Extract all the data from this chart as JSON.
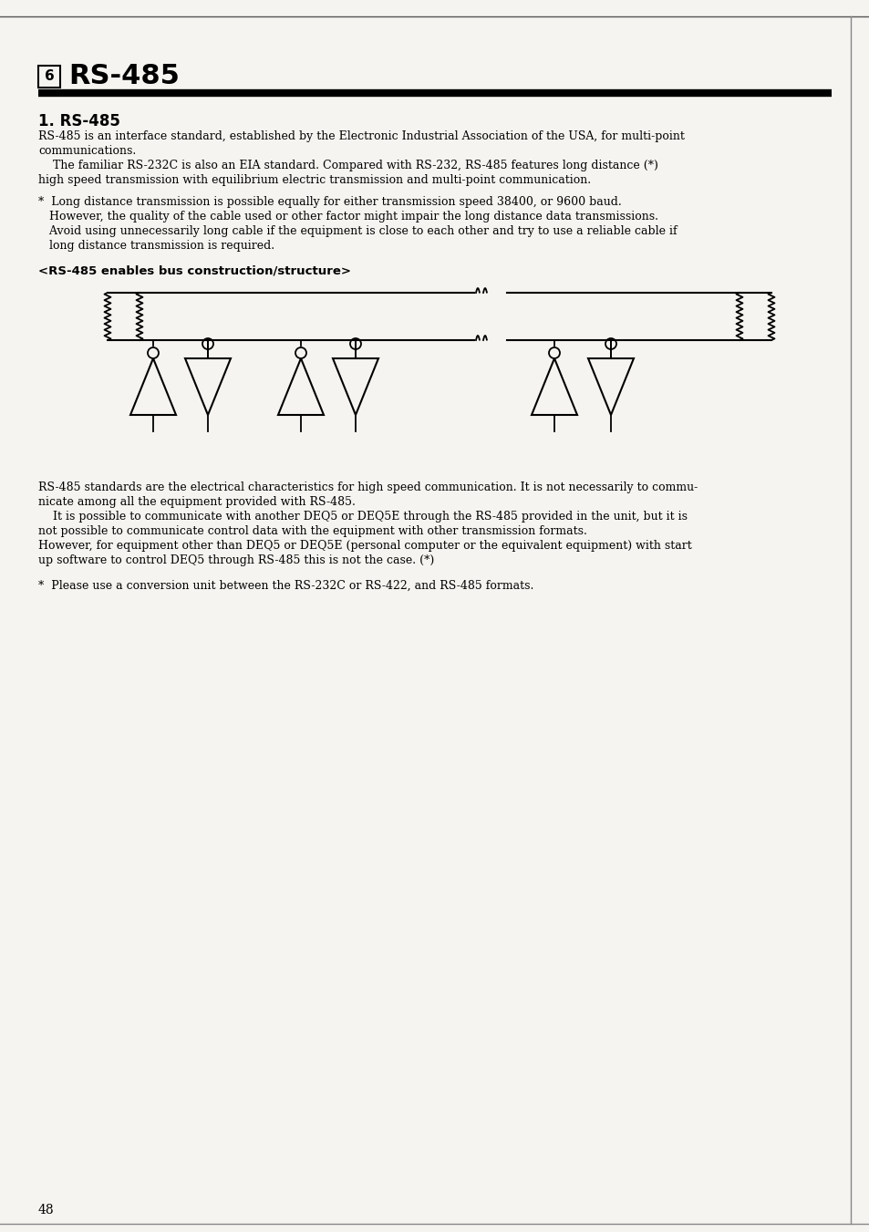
{
  "bg_color": "#f5f4f0",
  "title_number": "6",
  "title_text": "RS-485",
  "section_title": "1. RS-485",
  "para1_line1": "RS-485 is an interface standard, established by the Electronic Industrial Association of the USA, for multi-point",
  "para1_line2": "communications.",
  "para1_line3": "    The familiar RS-232C is also an EIA standard. Compared with RS-232, RS-485 features long distance (*)",
  "para1_line4": "high speed transmission with equilibrium electric transmission and multi-point communication.",
  "bullet_line1": "*  Long distance transmission is possible equally for either transmission speed 38400, or 9600 baud.",
  "bullet_line2": "   However, the quality of the cable used or other factor might impair the long distance data transmissions.",
  "bullet_line3": "   Avoid using unnecessarily long cable if the equipment is close to each other and try to use a reliable cable if",
  "bullet_line4": "   long distance transmission is required.",
  "diagram_label": "<RS-485 enables bus construction/structure>",
  "para2_line1": "RS-485 standards are the electrical characteristics for high speed communication. It is not necessarily to commu-",
  "para2_line2": "nicate among all the equipment provided with RS-485.",
  "para2_line3": "    It is possible to communicate with another DEQ5 or DEQ5E through the RS-485 provided in the unit, but it is",
  "para2_line4": "not possible to communicate control data with the equipment with other transmission formats.",
  "para2_line5": "However, for equipment other than DEQ5 or DEQ5E (personal computer or the equivalent equipment) with start",
  "para2_line6": "up software to control DEQ5 through RS-485 this is not the case. (*)",
  "bullet2_text": "*  Please use a conversion unit between the RS-232C or RS-422, and RS-485 formats.",
  "page_number": "48",
  "text_color": "#000000",
  "line_color": "#000000"
}
